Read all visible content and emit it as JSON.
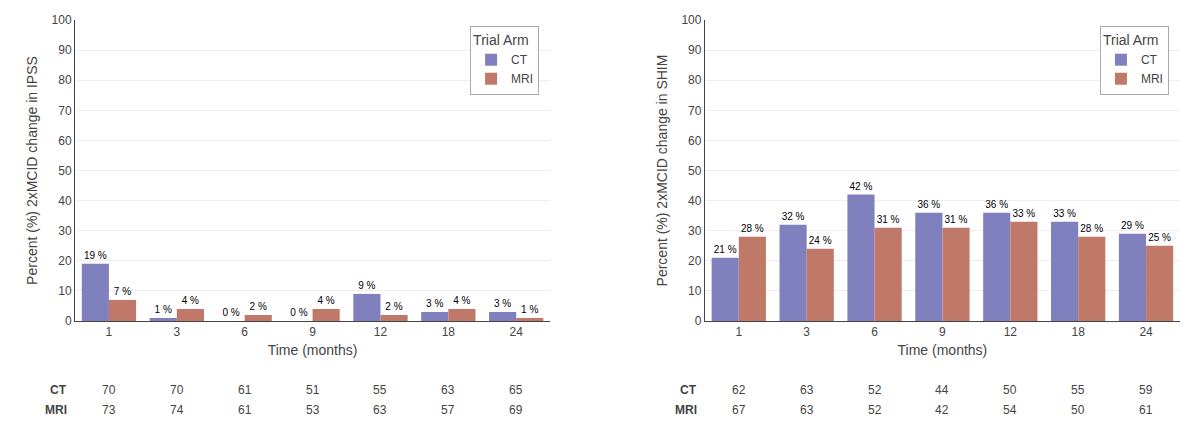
{
  "chart_data": [
    {
      "type": "bar",
      "xlabel": "Time (months)",
      "ylabel": "Percent (%) 2xMCID change in IPSS",
      "legend_title": "Trial Arm",
      "categories": [
        1,
        3,
        6,
        9,
        12,
        18,
        24
      ],
      "series": [
        {
          "name": "CT",
          "color": "#8080bf",
          "values": [
            19,
            1,
            0,
            0,
            9,
            3,
            3
          ],
          "value_labels": [
            "19 %",
            "1 %",
            "0 %",
            "0 %",
            "9 %",
            "3 %",
            "3 %"
          ],
          "n": [
            70,
            70,
            61,
            51,
            55,
            63,
            65
          ]
        },
        {
          "name": "MRI",
          "color": "#c07868",
          "values": [
            7,
            4,
            2,
            4,
            2,
            4,
            1
          ],
          "value_labels": [
            "7 %",
            "4 %",
            "2 %",
            "4 %",
            "2 %",
            "4 %",
            "1 %"
          ],
          "n": [
            73,
            74,
            61,
            53,
            63,
            57,
            69
          ]
        }
      ],
      "ylim": [
        0,
        100
      ],
      "yticks": [
        0,
        10,
        20,
        30,
        40,
        50,
        60,
        70,
        80,
        90,
        100
      ],
      "grid": true,
      "legend": "upper right",
      "data_labels": true
    },
    {
      "type": "bar",
      "xlabel": "Time (months)",
      "ylabel": "Percent (%) 2xMCID change in SHIM",
      "legend_title": "Trial Arm",
      "categories": [
        1,
        3,
        6,
        9,
        12,
        18,
        24
      ],
      "series": [
        {
          "name": "CT",
          "color": "#8080bf",
          "values": [
            21,
            32,
            42,
            36,
            36,
            33,
            29
          ],
          "value_labels": [
            "21 %",
            "32 %",
            "42 %",
            "36 %",
            "36 %",
            "33 %",
            "29 %"
          ],
          "n": [
            62,
            63,
            52,
            44,
            50,
            55,
            59
          ]
        },
        {
          "name": "MRI",
          "color": "#c07868",
          "values": [
            28,
            24,
            31,
            31,
            33,
            28,
            25
          ],
          "value_labels": [
            "28 %",
            "24 %",
            "31 %",
            "31 %",
            "33 %",
            "28 %",
            "25 %"
          ],
          "n": [
            67,
            63,
            52,
            42,
            54,
            50,
            61
          ]
        }
      ],
      "ylim": [
        0,
        100
      ],
      "yticks": [
        0,
        10,
        20,
        30,
        40,
        50,
        60,
        70,
        80,
        90,
        100
      ],
      "grid": true,
      "legend": "upper right",
      "data_labels": true
    }
  ]
}
